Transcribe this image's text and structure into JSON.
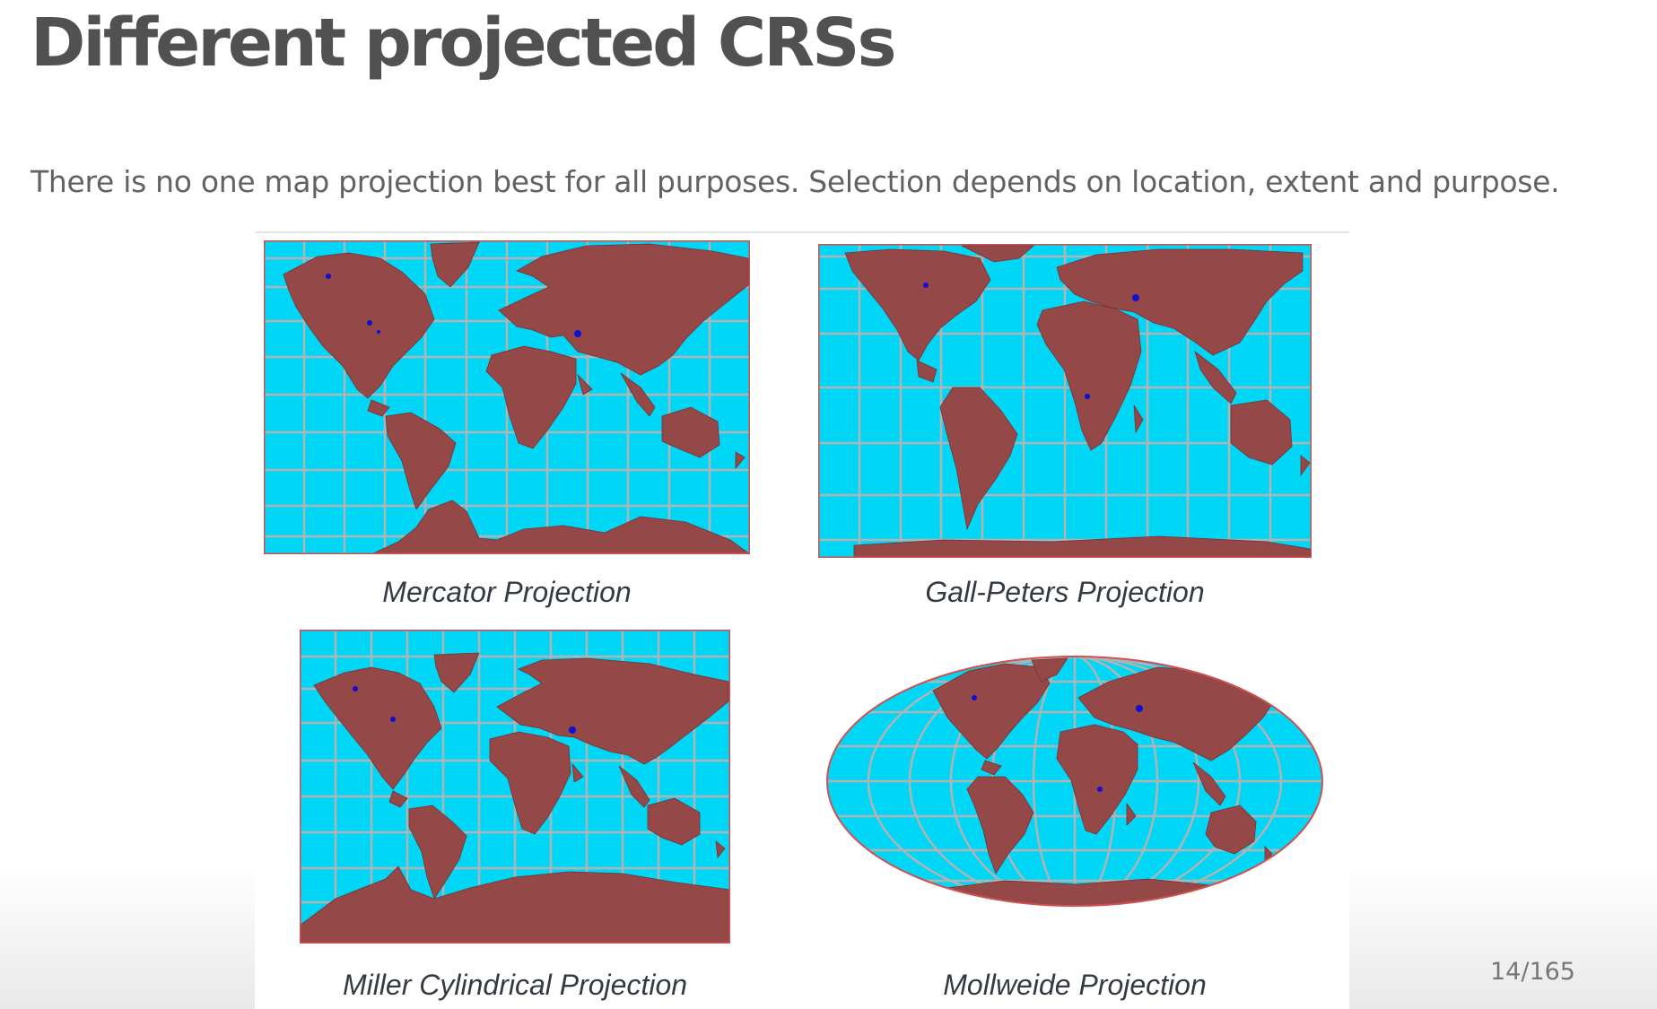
{
  "slide": {
    "title": "Different projected CRSs",
    "subtitle": "There is no one map projection best for all purposes. Selection depends on location, extent and purpose.",
    "page_number": "14/165"
  },
  "figure": {
    "colors": {
      "ocean": "#00d6f6",
      "land": "#944848",
      "grid": "#b3b3b3",
      "border": "#d05050",
      "lakes": "#1010d0"
    },
    "maps": [
      {
        "id": "mercator",
        "caption": "Mercator Projection"
      },
      {
        "id": "gall-peters",
        "caption": "Gall-Peters Projection"
      },
      {
        "id": "miller",
        "caption": "Miller Cylindrical Projection"
      },
      {
        "id": "mollweide",
        "caption": "Mollweide Projection"
      }
    ]
  }
}
